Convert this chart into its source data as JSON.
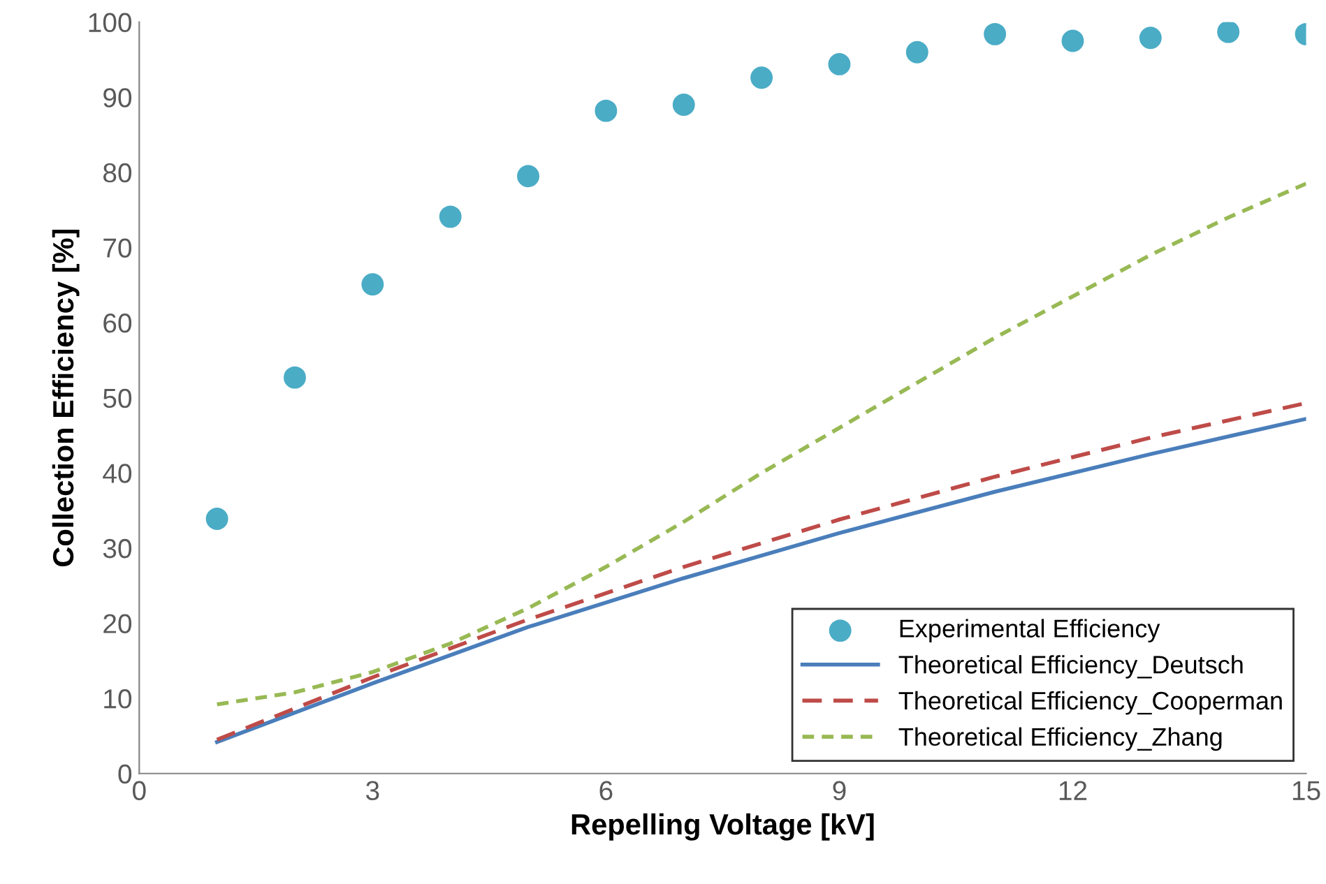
{
  "chart_data": {
    "type": "line",
    "xlabel": "Repelling Voltage [kV]",
    "ylabel": "Collection Efficiency [%]",
    "xlim": [
      0,
      15
    ],
    "xticks": [
      0,
      3,
      6,
      9,
      12,
      15
    ],
    "ylim": [
      0,
      100
    ],
    "yticks": [
      0,
      10,
      20,
      30,
      40,
      50,
      60,
      70,
      80,
      90,
      100
    ],
    "grid": false,
    "legend": "bottom right",
    "series": [
      {
        "name": "Experimental Efficiency",
        "type": "scatter",
        "color": "#4bacc6",
        "marker": "circle",
        "x": [
          1,
          2,
          3,
          4,
          5,
          6,
          7,
          8,
          9,
          10,
          11,
          12,
          13,
          14,
          15
        ],
        "values": [
          33.9,
          52.7,
          65.1,
          74.1,
          79.5,
          88.2,
          89.0,
          92.6,
          94.4,
          96.0,
          98.4,
          97.5,
          97.9,
          98.7,
          98.4
        ]
      },
      {
        "name": "Theoretical Efficiency_Deutsch",
        "type": "line",
        "color": "#4a7ebb",
        "line_style": "solid",
        "x": [
          1,
          3,
          5,
          7,
          9,
          11,
          13,
          15
        ],
        "values": [
          4.2,
          12.0,
          19.5,
          26.0,
          32.0,
          37.5,
          42.5,
          47.2
        ]
      },
      {
        "name": "Theoretical Efficiency_Cooperman",
        "type": "line",
        "color": "#be4b48",
        "line_style": "dashed",
        "x": [
          1,
          3,
          5,
          7,
          9,
          11,
          13,
          15
        ],
        "values": [
          4.5,
          12.8,
          20.5,
          27.5,
          33.8,
          39.5,
          44.7,
          49.3
        ]
      },
      {
        "name": "Theoretical Efficiency_Zhang",
        "type": "line",
        "color": "#98b954",
        "line_style": "dotted",
        "x": [
          1,
          2,
          3,
          4,
          5,
          6,
          7,
          8,
          9,
          10,
          11,
          12,
          13,
          14,
          15
        ],
        "values": [
          9.2,
          10.8,
          13.5,
          17.3,
          22.0,
          27.5,
          33.5,
          40.0,
          46.0,
          52.0,
          58.0,
          63.5,
          69.0,
          74.0,
          78.5
        ]
      }
    ]
  }
}
